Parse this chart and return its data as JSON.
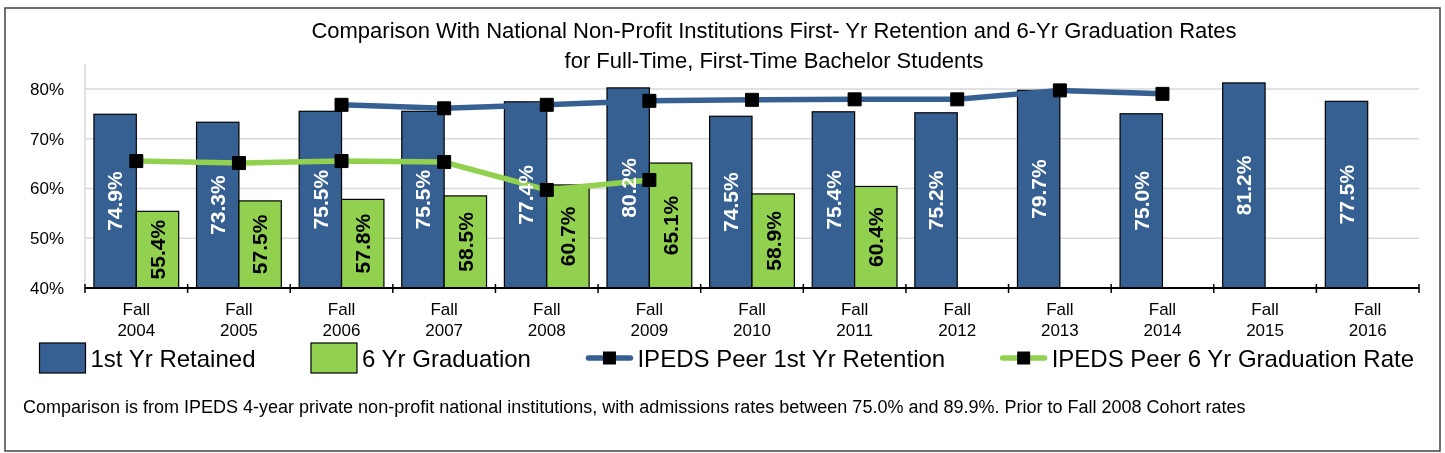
{
  "chart_data": {
    "type": "bar",
    "title": "Comparison With National Non-Profit Institutions First- Yr Retention and 6-Yr Graduation Rates\nfor Full-Time, First-Time Bachelor Students",
    "categories": [
      "Fall 2004",
      "Fall 2005",
      "Fall 2006",
      "Fall 2007",
      "Fall 2008",
      "Fall 2009",
      "Fall 2010",
      "Fall 2011",
      "Fall 2012",
      "Fall 2013",
      "Fall 2014",
      "Fall 2015",
      "Fall 2016"
    ],
    "series": [
      {
        "name": "1st Yr Retained",
        "color": "#366092",
        "values": [
          74.9,
          73.3,
          75.5,
          75.5,
          77.4,
          80.2,
          74.5,
          75.4,
          75.2,
          79.7,
          75.0,
          81.2,
          77.5
        ],
        "value_labels": [
          "74.9%",
          "73.3%",
          "75.5%",
          "75.5%",
          "77.4%",
          "80.2%",
          "74.5%",
          "75.4%",
          "75.2%",
          "79.7%",
          "75.0%",
          "81.2%",
          "77.5%"
        ]
      },
      {
        "name": "6 Yr Graduation",
        "color": "#92d050",
        "values": [
          55.4,
          57.5,
          57.8,
          58.5,
          60.7,
          65.1,
          58.9,
          60.4,
          null,
          null,
          null,
          null,
          null
        ],
        "value_labels": [
          "55.4%",
          "57.5%",
          "57.8%",
          "58.5%",
          "60.7%",
          "65.1%",
          "58.9%",
          "60.4%",
          null,
          null,
          null,
          null,
          null
        ]
      },
      {
        "name": "IPEDS Peer 1st Yr Retention",
        "type": "line",
        "color": "#376092",
        "values": [
          null,
          null,
          76.8,
          76.1,
          76.8,
          77.6,
          77.8,
          77.9,
          77.9,
          79.7,
          79.0,
          null,
          null
        ]
      },
      {
        "name": "IPEDS Peer 6 Yr Graduation Rate",
        "type": "line",
        "color": "#92d050",
        "values": [
          65.5,
          65.1,
          65.5,
          65.3,
          59.7,
          61.7,
          null,
          null,
          null,
          null,
          null,
          null,
          null
        ]
      }
    ],
    "ylim": [
      40,
      85
    ],
    "yticks": [
      {
        "value": 40,
        "label": "40%"
      },
      {
        "value": 50,
        "label": "50%"
      },
      {
        "value": 60,
        "label": "60%"
      },
      {
        "value": 70,
        "label": "70%"
      },
      {
        "value": 80,
        "label": "80%"
      }
    ],
    "grid": "y",
    "legend": "bottom",
    "marker": "square",
    "annotations": [
      "Comparison is from IPEDS 4-year private non-profit national institutions, with admissions rates between 75.0% and 89.9%.  Prior to Fall 2008 Cohort rates"
    ]
  }
}
